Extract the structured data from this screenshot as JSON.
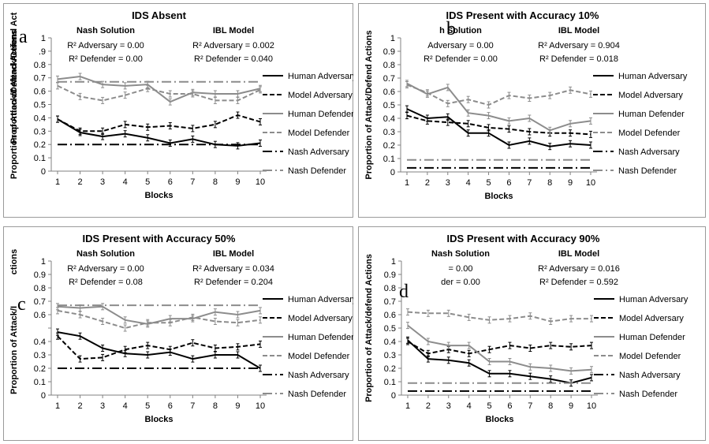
{
  "figure": {
    "frame_color": "#9a9a9a"
  },
  "colors": {
    "human_adversary": "#000000",
    "model_adversary": "#000000",
    "human_defender": "#8c8c8c",
    "model_defender": "#8c8c8c",
    "nash_adversary": "#000000",
    "nash_defender": "#8c8c8c"
  },
  "chart_data": [
    {
      "type": "line",
      "panel_letter": "a",
      "title": "IDS Absent",
      "xlabel": "Blocks",
      "ylabel": "Proportion of Attack/Defend Actions",
      "ylabel_partial": "Proportion of Attack/Defend Act",
      "x": [
        1,
        2,
        3,
        4,
        5,
        6,
        7,
        8,
        9,
        10
      ],
      "ylim": [
        0,
        1
      ],
      "yticks": [
        "0",
        "0.1",
        "0.2",
        "0.3",
        "0.4",
        "0.5",
        "0.6",
        "0.7",
        "0.8",
        ".9",
        "1"
      ],
      "annotations": {
        "nash_heading": "Nash Solution",
        "ibl_heading": "IBL Model",
        "nash_r2_adversary": "R² Adversary = 0.00",
        "nash_r2_defender": "R² Defender = 0.00",
        "ibl_r2_adversary": "R² Adversary = 0.002",
        "ibl_r2_defender": "R² Defender = 0.040"
      },
      "series": [
        {
          "name": "Human Adversary",
          "style": "solid",
          "values": [
            0.39,
            0.29,
            0.26,
            0.28,
            0.25,
            0.21,
            0.24,
            0.2,
            0.19,
            0.21
          ]
        },
        {
          "name": "Model Adversary",
          "style": "dashed",
          "values": [
            0.39,
            0.3,
            0.3,
            0.35,
            0.33,
            0.34,
            0.32,
            0.35,
            0.42,
            0.37
          ]
        },
        {
          "name": "Human Defender",
          "style": "solid",
          "values": [
            0.69,
            0.71,
            0.65,
            0.64,
            0.65,
            0.52,
            0.59,
            0.58,
            0.58,
            0.62
          ]
        },
        {
          "name": "Model Defender",
          "style": "dashed",
          "values": [
            0.64,
            0.56,
            0.53,
            0.57,
            0.62,
            0.58,
            0.58,
            0.53,
            0.53,
            0.61
          ]
        },
        {
          "name": "Nash Adversary",
          "style": "dashdot",
          "values": [
            0.2,
            0.2,
            0.2,
            0.2,
            0.2,
            0.2,
            0.2,
            0.2,
            0.2,
            0.2
          ]
        },
        {
          "name": "Nash Defender",
          "style": "dashdot",
          "values": [
            0.67,
            0.67,
            0.67,
            0.67,
            0.67,
            0.67,
            0.67,
            0.67,
            0.67,
            0.67
          ]
        }
      ]
    },
    {
      "type": "line",
      "panel_letter": "b",
      "title": "IDS Present with Accuracy 10%",
      "xlabel": "Blocks",
      "ylabel": "Proportion of Attack/Defend Actions",
      "ylabel_partial": "",
      "x": [
        1,
        2,
        3,
        4,
        5,
        6,
        7,
        8,
        9,
        10
      ],
      "ylim": [
        0,
        1
      ],
      "yticks": [
        "0",
        "0.1",
        "0.2",
        "0.3",
        "0.4",
        "0.5",
        "0.6",
        "0.7",
        "0.8",
        "0.9",
        "1"
      ],
      "annotations": {
        "nash_heading": "h Solution",
        "ibl_heading": "IBL Model",
        "nash_r2_adversary": "Adversary = 0.00",
        "nash_r2_defender": "R² Defender = 0.00",
        "ibl_r2_adversary": "R² Adversary = 0.904",
        "ibl_r2_defender": "R² Defender = 0.018"
      },
      "series": [
        {
          "name": "Human Adversary",
          "style": "solid",
          "values": [
            0.47,
            0.4,
            0.41,
            0.29,
            0.29,
            0.2,
            0.23,
            0.19,
            0.21,
            0.2
          ]
        },
        {
          "name": "Model Adversary",
          "style": "dashed",
          "values": [
            0.42,
            0.38,
            0.37,
            0.36,
            0.33,
            0.32,
            0.3,
            0.29,
            0.29,
            0.28
          ]
        },
        {
          "name": "Human Defender",
          "style": "solid",
          "values": [
            0.66,
            0.58,
            0.63,
            0.44,
            0.42,
            0.38,
            0.4,
            0.31,
            0.36,
            0.38
          ]
        },
        {
          "name": "Model Defender",
          "style": "dashed",
          "values": [
            0.65,
            0.59,
            0.51,
            0.54,
            0.5,
            0.57,
            0.55,
            0.57,
            0.61,
            0.58
          ]
        },
        {
          "name": "Nash Adversary",
          "style": "dashdot",
          "values": [
            0.03,
            0.03,
            0.03,
            0.03,
            0.03,
            0.03,
            0.03,
            0.03,
            0.03,
            0.03
          ]
        },
        {
          "name": "Nash Defender",
          "style": "dashdot",
          "values": [
            0.09,
            0.09,
            0.09,
            0.09,
            0.09,
            0.09,
            0.09,
            0.09,
            0.09,
            0.09
          ]
        }
      ]
    },
    {
      "type": "line",
      "panel_letter": "c",
      "title": "IDS Present with Accuracy 50%",
      "xlabel": "Blocks",
      "ylabel": "Proportion of Attack/I",
      "ylabel_partial": "ctions",
      "x": [
        1,
        2,
        3,
        4,
        5,
        6,
        7,
        8,
        9,
        10
      ],
      "ylim": [
        0,
        1
      ],
      "yticks": [
        "0",
        "0.1",
        "0.2",
        "0.3",
        "0.4",
        "",
        "0.6",
        "0.7",
        "0.8",
        "0.9",
        "1"
      ],
      "annotations": {
        "nash_heading": "Nash Solution",
        "ibl_heading": "IBL Model",
        "nash_r2_adversary": "R² Adversary = 0.00",
        "nash_r2_defender": "R² Defender = 0.08",
        "ibl_r2_adversary": "R² Adversary = 0.034",
        "ibl_r2_defender": "R² Defender = 0.204"
      },
      "series": [
        {
          "name": "Human Adversary",
          "style": "solid",
          "values": [
            0.47,
            0.44,
            0.35,
            0.31,
            0.3,
            0.32,
            0.27,
            0.3,
            0.3,
            0.2
          ]
        },
        {
          "name": "Model Adversary",
          "style": "dashed",
          "values": [
            0.44,
            0.27,
            0.28,
            0.34,
            0.37,
            0.34,
            0.39,
            0.35,
            0.36,
            0.38
          ]
        },
        {
          "name": "Human Defender",
          "style": "solid",
          "values": [
            0.66,
            0.65,
            0.66,
            0.56,
            0.53,
            0.57,
            0.57,
            0.62,
            0.6,
            0.63
          ]
        },
        {
          "name": "Model Defender",
          "style": "dashed",
          "values": [
            0.63,
            0.6,
            0.55,
            0.5,
            0.54,
            0.54,
            0.58,
            0.55,
            0.54,
            0.56
          ]
        },
        {
          "name": "Nash Adversary",
          "style": "dashdot",
          "values": [
            0.2,
            0.2,
            0.2,
            0.2,
            0.2,
            0.2,
            0.2,
            0.2,
            0.2,
            0.2
          ]
        },
        {
          "name": "Nash Defender",
          "style": "dashdot",
          "values": [
            0.67,
            0.67,
            0.67,
            0.67,
            0.67,
            0.67,
            0.67,
            0.67,
            0.67,
            0.67
          ]
        }
      ]
    },
    {
      "type": "line",
      "panel_letter": "d",
      "title": "IDS Present with Accuracy 90%",
      "xlabel": "Blocks",
      "ylabel": "Proportion of Attack/defend Actions",
      "ylabel_partial": "",
      "x": [
        1,
        2,
        3,
        4,
        5,
        6,
        7,
        8,
        9,
        10
      ],
      "ylim": [
        0,
        1
      ],
      "yticks": [
        "0",
        "0.1",
        "0.2",
        "0.3",
        "0.4",
        "0.5",
        "0.6",
        "0.7",
        "0.8",
        "0.9",
        "1"
      ],
      "annotations": {
        "nash_heading": "Nash Solution",
        "ibl_heading": "IBL Model",
        "nash_r2_adversary": "= 0.00",
        "nash_r2_defender": "der = 0.00",
        "ibl_r2_adversary": "R² Adversary = 0.016",
        "ibl_r2_defender": "R² Defender = 0.592"
      },
      "series": [
        {
          "name": "Human Adversary",
          "style": "solid",
          "values": [
            0.41,
            0.27,
            0.26,
            0.24,
            0.16,
            0.16,
            0.14,
            0.12,
            0.09,
            0.13
          ]
        },
        {
          "name": "Model Adversary",
          "style": "dashed",
          "values": [
            0.4,
            0.31,
            0.34,
            0.31,
            0.34,
            0.37,
            0.35,
            0.37,
            0.36,
            0.37
          ]
        },
        {
          "name": "Human Defender",
          "style": "solid",
          "values": [
            0.52,
            0.4,
            0.37,
            0.37,
            0.25,
            0.25,
            0.21,
            0.2,
            0.18,
            0.19
          ]
        },
        {
          "name": "Model Defender",
          "style": "dashed",
          "values": [
            0.62,
            0.61,
            0.61,
            0.58,
            0.56,
            0.57,
            0.59,
            0.55,
            0.57,
            0.57
          ]
        },
        {
          "name": "Nash Adversary",
          "style": "dashdot",
          "values": [
            0.03,
            0.03,
            0.03,
            0.03,
            0.03,
            0.03,
            0.03,
            0.03,
            0.03,
            0.03
          ]
        },
        {
          "name": "Nash Defender",
          "style": "dashdot",
          "values": [
            0.09,
            0.09,
            0.09,
            0.09,
            0.09,
            0.09,
            0.09,
            0.09,
            0.09,
            0.09
          ]
        }
      ]
    }
  ]
}
